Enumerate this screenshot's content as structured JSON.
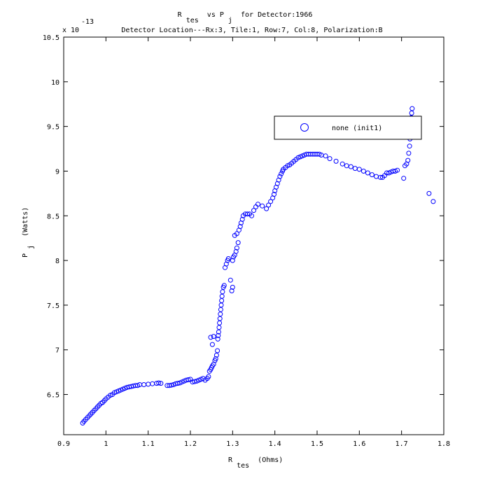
{
  "chart_data": {
    "type": "scatter",
    "title": {
      "line1": {
        "a": "R",
        "a_sub": "tes",
        "b": " vs P",
        "b_sub": "j",
        "c": " for Detector:1966"
      },
      "line2": "Detector Location---Rx:3, Tile:1, Row:7, Col:8, Polarization:B"
    },
    "xlabel": {
      "main": "R",
      "sub": "tes",
      "rest": " (Ohms)"
    },
    "ylabel": {
      "main": "P",
      "sub": "j",
      "rest": " (Watts)"
    },
    "y_exponent": {
      "base": "x 10",
      "power": "-13"
    },
    "xlim": [
      0.9,
      1.8
    ],
    "ylim": [
      6.05,
      10.5
    ],
    "x_ticks": [
      "0.9",
      "1",
      "1.1",
      "1.2",
      "1.3",
      "1.4",
      "1.5",
      "1.6",
      "1.7",
      "1.8"
    ],
    "y_ticks": [
      "6.5",
      "7",
      "7.5",
      "8",
      "8.5",
      "9",
      "9.5",
      "10",
      "10.5"
    ],
    "grid": false,
    "legend": {
      "placement": "top-right",
      "entry": "none (init1)"
    },
    "colors": {
      "marker": "#0000ff",
      "axis": "#000000",
      "background": "#ffffff"
    },
    "series": [
      {
        "name": "none (init1)",
        "marker": "circle",
        "points": [
          [
            0.945,
            6.18
          ],
          [
            0.948,
            6.2
          ],
          [
            0.952,
            6.22
          ],
          [
            0.956,
            6.24
          ],
          [
            0.96,
            6.26
          ],
          [
            0.964,
            6.28
          ],
          [
            0.968,
            6.3
          ],
          [
            0.972,
            6.32
          ],
          [
            0.976,
            6.34
          ],
          [
            0.98,
            6.36
          ],
          [
            0.984,
            6.38
          ],
          [
            0.988,
            6.4
          ],
          [
            0.992,
            6.41
          ],
          [
            0.996,
            6.43
          ],
          [
            1.0,
            6.45
          ],
          [
            1.005,
            6.47
          ],
          [
            1.01,
            6.49
          ],
          [
            1.015,
            6.5
          ],
          [
            1.02,
            6.52
          ],
          [
            1.025,
            6.53
          ],
          [
            1.03,
            6.54
          ],
          [
            1.035,
            6.55
          ],
          [
            1.04,
            6.56
          ],
          [
            1.045,
            6.57
          ],
          [
            1.05,
            6.58
          ],
          [
            1.055,
            6.585
          ],
          [
            1.06,
            6.59
          ],
          [
            1.065,
            6.595
          ],
          [
            1.07,
            6.6
          ],
          [
            1.075,
            6.6
          ],
          [
            1.08,
            6.61
          ],
          [
            1.09,
            6.61
          ],
          [
            1.1,
            6.615
          ],
          [
            1.11,
            6.62
          ],
          [
            1.12,
            6.625
          ],
          [
            1.125,
            6.63
          ],
          [
            1.13,
            6.625
          ],
          [
            1.145,
            6.6
          ],
          [
            1.15,
            6.6
          ],
          [
            1.155,
            6.605
          ],
          [
            1.16,
            6.61
          ],
          [
            1.165,
            6.62
          ],
          [
            1.17,
            6.625
          ],
          [
            1.175,
            6.63
          ],
          [
            1.18,
            6.64
          ],
          [
            1.185,
            6.65
          ],
          [
            1.19,
            6.66
          ],
          [
            1.195,
            6.665
          ],
          [
            1.2,
            6.67
          ],
          [
            1.205,
            6.64
          ],
          [
            1.21,
            6.645
          ],
          [
            1.215,
            6.65
          ],
          [
            1.22,
            6.66
          ],
          [
            1.225,
            6.67
          ],
          [
            1.23,
            6.68
          ],
          [
            1.235,
            6.66
          ],
          [
            1.24,
            6.68
          ],
          [
            1.243,
            6.7
          ],
          [
            1.245,
            6.76
          ],
          [
            1.248,
            6.78
          ],
          [
            1.25,
            6.8
          ],
          [
            1.252,
            6.82
          ],
          [
            1.255,
            6.84
          ],
          [
            1.258,
            6.88
          ],
          [
            1.26,
            6.9
          ],
          [
            1.262,
            6.94
          ],
          [
            1.264,
            6.99
          ],
          [
            1.248,
            7.14
          ],
          [
            1.252,
            7.06
          ],
          [
            1.255,
            7.15
          ],
          [
            1.265,
            7.12
          ],
          [
            1.266,
            7.16
          ],
          [
            1.267,
            7.2
          ],
          [
            1.268,
            7.25
          ],
          [
            1.269,
            7.3
          ],
          [
            1.27,
            7.35
          ],
          [
            1.271,
            7.4
          ],
          [
            1.272,
            7.45
          ],
          [
            1.273,
            7.5
          ],
          [
            1.274,
            7.55
          ],
          [
            1.275,
            7.6
          ],
          [
            1.276,
            7.65
          ],
          [
            1.278,
            7.7
          ],
          [
            1.28,
            7.72
          ],
          [
            1.282,
            7.92
          ],
          [
            1.285,
            7.96
          ],
          [
            1.288,
            8.0
          ],
          [
            1.29,
            8.02
          ],
          [
            1.295,
            7.78
          ],
          [
            1.298,
            7.66
          ],
          [
            1.3,
            7.7
          ],
          [
            1.3,
            8.0
          ],
          [
            1.302,
            8.04
          ],
          [
            1.305,
            8.06
          ],
          [
            1.308,
            8.1
          ],
          [
            1.31,
            8.14
          ],
          [
            1.313,
            8.2
          ],
          [
            1.305,
            8.28
          ],
          [
            1.31,
            8.3
          ],
          [
            1.315,
            8.34
          ],
          [
            1.318,
            8.38
          ],
          [
            1.32,
            8.42
          ],
          [
            1.323,
            8.46
          ],
          [
            1.325,
            8.5
          ],
          [
            1.33,
            8.52
          ],
          [
            1.335,
            8.52
          ],
          [
            1.34,
            8.52
          ],
          [
            1.345,
            8.5
          ],
          [
            1.35,
            8.56
          ],
          [
            1.355,
            8.6
          ],
          [
            1.36,
            8.63
          ],
          [
            1.37,
            8.61
          ],
          [
            1.38,
            8.58
          ],
          [
            1.385,
            8.62
          ],
          [
            1.39,
            8.66
          ],
          [
            1.395,
            8.7
          ],
          [
            1.398,
            8.74
          ],
          [
            1.4,
            8.78
          ],
          [
            1.403,
            8.82
          ],
          [
            1.406,
            8.86
          ],
          [
            1.409,
            8.9
          ],
          [
            1.412,
            8.94
          ],
          [
            1.415,
            8.97
          ],
          [
            1.418,
            9.0
          ],
          [
            1.42,
            9.02
          ],
          [
            1.425,
            9.04
          ],
          [
            1.43,
            9.06
          ],
          [
            1.435,
            9.07
          ],
          [
            1.44,
            9.09
          ],
          [
            1.445,
            9.11
          ],
          [
            1.45,
            9.13
          ],
          [
            1.455,
            9.15
          ],
          [
            1.46,
            9.16
          ],
          [
            1.465,
            9.17
          ],
          [
            1.47,
            9.18
          ],
          [
            1.475,
            9.19
          ],
          [
            1.48,
            9.19
          ],
          [
            1.485,
            9.19
          ],
          [
            1.49,
            9.19
          ],
          [
            1.495,
            9.19
          ],
          [
            1.5,
            9.19
          ],
          [
            1.505,
            9.19
          ],
          [
            1.51,
            9.18
          ],
          [
            1.52,
            9.17
          ],
          [
            1.53,
            9.14
          ],
          [
            1.545,
            9.11
          ],
          [
            1.56,
            9.08
          ],
          [
            1.57,
            9.06
          ],
          [
            1.58,
            9.05
          ],
          [
            1.59,
            9.03
          ],
          [
            1.6,
            9.02
          ],
          [
            1.61,
            9.0
          ],
          [
            1.62,
            8.98
          ],
          [
            1.63,
            8.96
          ],
          [
            1.64,
            8.94
          ],
          [
            1.65,
            8.93
          ],
          [
            1.655,
            8.93
          ],
          [
            1.66,
            8.95
          ],
          [
            1.665,
            8.98
          ],
          [
            1.67,
            8.98
          ],
          [
            1.675,
            8.99
          ],
          [
            1.68,
            9.0
          ],
          [
            1.685,
            9.0
          ],
          [
            1.69,
            9.01
          ],
          [
            1.705,
            8.92
          ],
          [
            1.708,
            9.06
          ],
          [
            1.712,
            9.08
          ],
          [
            1.715,
            9.12
          ],
          [
            1.717,
            9.2
          ],
          [
            1.719,
            9.28
          ],
          [
            1.72,
            9.36
          ],
          [
            1.721,
            9.44
          ],
          [
            1.722,
            9.52
          ],
          [
            1.723,
            9.6
          ],
          [
            1.724,
            9.65
          ],
          [
            1.725,
            9.7
          ],
          [
            1.765,
            8.75
          ],
          [
            1.775,
            8.66
          ]
        ]
      }
    ]
  }
}
